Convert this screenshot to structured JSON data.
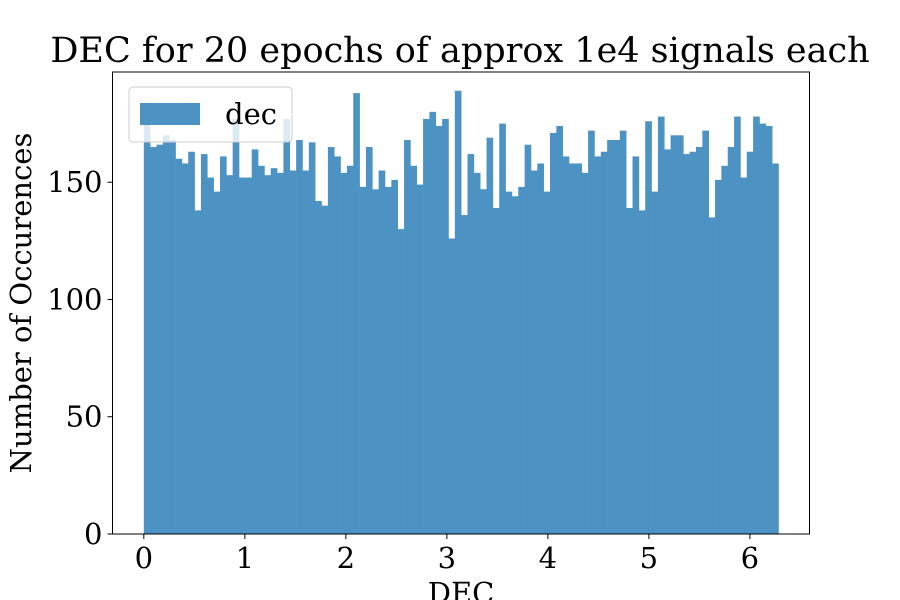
{
  "chart_data": {
    "type": "bar",
    "title": "DEC for 20 epochs of approx 1e4 signals each",
    "xlabel": "DEC",
    "ylabel": "Number of Occurences",
    "xlim": [
      -0.31,
      6.59
    ],
    "ylim": [
      0,
      197
    ],
    "xticks": [
      "0",
      "1",
      "2",
      "3",
      "4",
      "5",
      "6"
    ],
    "yticks": [
      "0",
      "50",
      "100",
      "150"
    ],
    "legend": {
      "position": "top-left",
      "entries": [
        "dec"
      ]
    },
    "grid": false,
    "bins": {
      "start": 0,
      "end": 6.2832,
      "count": 100
    },
    "series": [
      {
        "name": "dec",
        "color": "#4c92c3",
        "values": [
          175,
          165,
          166,
          170,
          168,
          160,
          158,
          163,
          138,
          162,
          152,
          146,
          161,
          153,
          177,
          152,
          152,
          164,
          157,
          153,
          156,
          154,
          177,
          155,
          168,
          155,
          167,
          142,
          140,
          165,
          161,
          154,
          157,
          188,
          148,
          165,
          147,
          155,
          148,
          151,
          130,
          168,
          157,
          149,
          177,
          180,
          174,
          177,
          126,
          189,
          136,
          162,
          154,
          147,
          169,
          139,
          175,
          146,
          144,
          148,
          166,
          155,
          158,
          146,
          171,
          174,
          161,
          158,
          158,
          154,
          172,
          161,
          163,
          168,
          168,
          172,
          139,
          161,
          138,
          176,
          146,
          178,
          164,
          170,
          170,
          162,
          163,
          165,
          172,
          135,
          151,
          157,
          165,
          178,
          152,
          163,
          178,
          175,
          174,
          158
        ]
      }
    ]
  }
}
